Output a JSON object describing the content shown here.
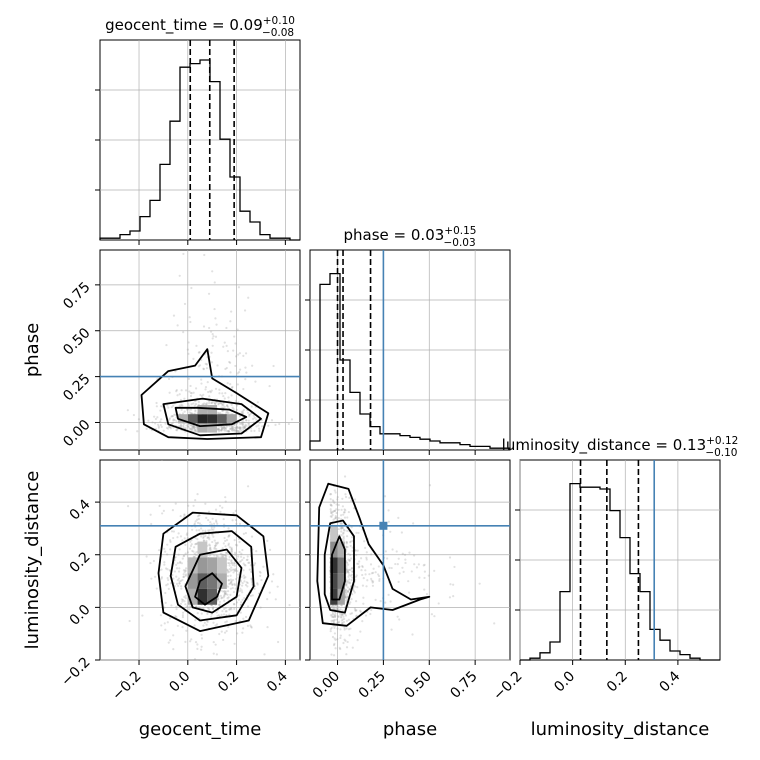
{
  "chart_data": {
    "type": "corner",
    "parameters": [
      "geocent_time",
      "phase",
      "luminosity_distance"
    ],
    "axis_labels": {
      "x": [
        "geocent_time",
        "phase",
        "luminosity_distance"
      ],
      "y": [
        "phase",
        "luminosity_distance"
      ]
    },
    "titles": [
      {
        "param": "geocent_time",
        "text": "geocent_time = 0.09",
        "sup": "+0.10",
        "sub": "−0.08"
      },
      {
        "param": "phase",
        "text": "phase = 0.03",
        "sup": "+0.15",
        "sub": "−0.03"
      },
      {
        "param": "luminosity_distance",
        "text": "luminosity_distance = 0.13",
        "sup": "+0.12",
        "sub": "−0.10"
      }
    ],
    "ranges": {
      "geocent_time": [
        -0.36,
        0.46
      ],
      "phase": [
        -0.15,
        0.94
      ],
      "luminosity_distance": [
        -0.2,
        0.56
      ]
    },
    "ticks": {
      "geocent_time": [
        {
          "v": -0.2,
          "label": "−0.2"
        },
        {
          "v": 0.0,
          "label": "0.0"
        },
        {
          "v": 0.2,
          "label": "0.2"
        },
        {
          "v": 0.4,
          "label": "0.4"
        }
      ],
      "phase": [
        {
          "v": 0.0,
          "label": "0.00"
        },
        {
          "v": 0.25,
          "label": "0.25"
        },
        {
          "v": 0.5,
          "label": "0.50"
        },
        {
          "v": 0.75,
          "label": "0.75"
        }
      ],
      "luminosity_distance": [
        {
          "v": -0.2,
          "label": "−0.2"
        },
        {
          "v": 0.0,
          "label": "0.0"
        },
        {
          "v": 0.2,
          "label": "0.2"
        },
        {
          "v": 0.4,
          "label": "0.4"
        }
      ]
    },
    "quantiles": {
      "geocent_time": [
        0.01,
        0.09,
        0.19
      ],
      "phase": [
        0.0,
        0.03,
        0.18
      ],
      "luminosity_distance": [
        0.03,
        0.13,
        0.25
      ]
    },
    "truths": {
      "geocent_time": null,
      "phase": 0.25,
      "luminosity_distance": 0.31
    },
    "histograms": {
      "geocent_time": [
        0.01,
        0.01,
        0.03,
        0.05,
        0.13,
        0.22,
        0.42,
        0.66,
        0.96,
        0.98,
        1.0,
        0.88,
        0.56,
        0.35,
        0.16,
        0.1,
        0.03,
        0.01,
        0.01,
        0.0
      ],
      "phase": [
        0.05,
        0.92,
        0.98,
        0.5,
        0.32,
        0.2,
        0.13,
        0.09,
        0.09,
        0.08,
        0.07,
        0.06,
        0.05,
        0.04,
        0.04,
        0.03,
        0.02,
        0.02,
        0.01,
        0.01
      ],
      "luminosity_distance": [
        0.0,
        0.01,
        0.04,
        0.1,
        0.38,
        0.98,
        0.96,
        0.96,
        0.95,
        0.83,
        0.68,
        0.48,
        0.38,
        0.17,
        0.11,
        0.05,
        0.03,
        0.01,
        0.0,
        0.0
      ]
    },
    "contours": {
      "phase_vs_geocent_time": [
        [
          [
            -0.05,
            0.08
          ],
          [
            -0.04,
            0.02
          ],
          [
            0.05,
            -0.02
          ],
          [
            0.18,
            -0.01
          ],
          [
            0.24,
            0.03
          ],
          [
            0.17,
            0.07
          ],
          [
            0.04,
            0.08
          ]
        ],
        [
          [
            -0.1,
            0.1
          ],
          [
            -0.08,
            -0.01
          ],
          [
            0.05,
            -0.07
          ],
          [
            0.22,
            -0.06
          ],
          [
            0.3,
            0.02
          ],
          [
            0.22,
            0.1
          ],
          [
            0.06,
            0.13
          ]
        ],
        [
          [
            -0.19,
            0.15
          ],
          [
            -0.18,
            -0.01
          ],
          [
            -0.08,
            -0.08
          ],
          [
            0.08,
            -0.09
          ],
          [
            0.3,
            -0.08
          ],
          [
            0.33,
            0.05
          ],
          [
            0.2,
            0.16
          ],
          [
            0.1,
            0.24
          ],
          [
            0.08,
            0.4
          ],
          [
            0.03,
            0.31
          ],
          [
            -0.08,
            0.28
          ]
        ]
      ],
      "luminosity_distance_vs_geocent_time": [
        [
          [
            0.03,
            0.04
          ],
          [
            0.07,
            0.01
          ],
          [
            0.12,
            0.04
          ],
          [
            0.14,
            0.09
          ],
          [
            0.1,
            0.13
          ],
          [
            0.05,
            0.1
          ]
        ],
        [
          [
            -0.01,
            0.08
          ],
          [
            0.02,
            0.0
          ],
          [
            0.1,
            -0.02
          ],
          [
            0.2,
            0.04
          ],
          [
            0.22,
            0.15
          ],
          [
            0.16,
            0.22
          ],
          [
            0.05,
            0.2
          ]
        ],
        [
          [
            -0.07,
            0.12
          ],
          [
            -0.04,
            0.01
          ],
          [
            0.05,
            -0.05
          ],
          [
            0.2,
            -0.03
          ],
          [
            0.27,
            0.08
          ],
          [
            0.26,
            0.23
          ],
          [
            0.18,
            0.29
          ],
          [
            0.05,
            0.28
          ],
          [
            -0.05,
            0.23
          ]
        ],
        [
          [
            -0.12,
            0.13
          ],
          [
            -0.1,
            -0.02
          ],
          [
            0.05,
            -0.09
          ],
          [
            0.25,
            -0.05
          ],
          [
            0.33,
            0.12
          ],
          [
            0.31,
            0.27
          ],
          [
            0.2,
            0.35
          ],
          [
            0.02,
            0.36
          ],
          [
            -0.1,
            0.28
          ]
        ]
      ],
      "luminosity_distance_vs_phase": [
        [
          [
            -0.03,
            0.03
          ],
          [
            0.01,
            0.03
          ],
          [
            0.04,
            0.1
          ],
          [
            0.04,
            0.22
          ],
          [
            0.01,
            0.27
          ],
          [
            -0.03,
            0.2
          ]
        ],
        [
          [
            -0.07,
            0.05
          ],
          [
            -0.04,
            -0.01
          ],
          [
            0.04,
            -0.02
          ],
          [
            0.09,
            0.1
          ],
          [
            0.09,
            0.27
          ],
          [
            0.03,
            0.33
          ],
          [
            -0.04,
            0.32
          ],
          [
            -0.07,
            0.2
          ]
        ],
        [
          [
            -0.11,
            0.1
          ],
          [
            -0.08,
            -0.06
          ],
          [
            0.05,
            -0.07
          ],
          [
            0.18,
            0.0
          ],
          [
            0.3,
            -0.01
          ],
          [
            0.45,
            0.03
          ],
          [
            0.5,
            0.04
          ],
          [
            0.4,
            0.03
          ],
          [
            0.3,
            0.07
          ],
          [
            0.25,
            0.16
          ],
          [
            0.17,
            0.24
          ],
          [
            0.12,
            0.34
          ],
          [
            0.06,
            0.45
          ],
          [
            -0.05,
            0.47
          ],
          [
            -0.1,
            0.38
          ]
        ]
      ]
    },
    "density_cells": {
      "phase_vs_geocent_time": [
        [
          0.02,
          0.02,
          0.7
        ],
        [
          0.06,
          0.02,
          0.95
        ],
        [
          0.1,
          0.02,
          0.9
        ],
        [
          0.14,
          0.02,
          0.7
        ],
        [
          -0.02,
          0.02,
          0.35
        ],
        [
          0.18,
          0.02,
          0.4
        ],
        [
          0.06,
          0.07,
          0.35
        ],
        [
          0.1,
          0.07,
          0.35
        ],
        [
          0.06,
          -0.03,
          0.35
        ],
        [
          0.1,
          -0.03,
          0.3
        ]
      ],
      "luminosity_distance_vs_geocent_time": [
        [
          0.06,
          0.04,
          0.9
        ],
        [
          0.1,
          0.04,
          0.7
        ],
        [
          0.06,
          0.1,
          0.7
        ],
        [
          0.1,
          0.1,
          0.6
        ],
        [
          0.02,
          0.1,
          0.45
        ],
        [
          0.06,
          0.16,
          0.45
        ],
        [
          0.1,
          0.16,
          0.4
        ],
        [
          0.14,
          0.1,
          0.35
        ],
        [
          0.02,
          0.16,
          0.3
        ],
        [
          0.06,
          0.22,
          0.25
        ],
        [
          0.14,
          0.16,
          0.25
        ],
        [
          0.02,
          0.04,
          0.35
        ]
      ],
      "luminosity_distance_vs_phase": [
        [
          -0.02,
          0.04,
          0.85
        ],
        [
          -0.02,
          0.1,
          0.8
        ],
        [
          -0.02,
          0.16,
          0.9
        ],
        [
          0.02,
          0.16,
          0.6
        ],
        [
          -0.02,
          0.22,
          0.5
        ],
        [
          0.02,
          0.1,
          0.55
        ],
        [
          0.02,
          0.04,
          0.4
        ],
        [
          0.02,
          0.22,
          0.35
        ],
        [
          -0.02,
          0.28,
          0.25
        ]
      ]
    },
    "colors": {
      "truth": "#4682b4",
      "line": "#000000",
      "grid": "#b0b0b0",
      "samples": "#9a9a9a"
    },
    "grid": true
  }
}
